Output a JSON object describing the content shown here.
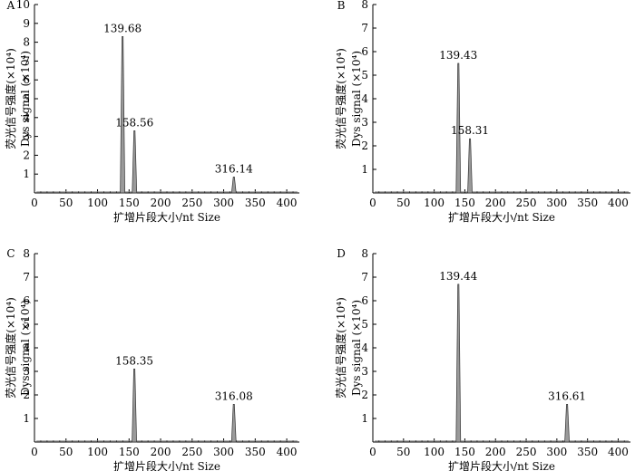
{
  "chart_data": [
    {
      "type": "line",
      "panel": "A",
      "xlabel": "扩增片段大小/nt  Size",
      "ylabel_cn": "荧光信号强度(×10⁴)",
      "ylabel_en": "Dys signal (×10⁴)",
      "xlim": [
        0,
        420
      ],
      "ylim": [
        0,
        10
      ],
      "xticks": [
        0,
        50,
        100,
        150,
        200,
        250,
        300,
        350,
        400
      ],
      "yticks": [
        1,
        2,
        3,
        4,
        5,
        6,
        7,
        8,
        9,
        10
      ],
      "grid": false,
      "peaks": [
        {
          "x": 139.68,
          "y": 8.3,
          "label": "139.68"
        },
        {
          "x": 158.56,
          "y": 3.3,
          "label": "158.56"
        },
        {
          "x": 316.14,
          "y": 0.85,
          "label": "316.14"
        }
      ]
    },
    {
      "type": "line",
      "panel": "B",
      "xlabel": "扩增片段大小/nt  Size",
      "ylabel_cn": "荧光信号强度(×10⁴)",
      "ylabel_en": "Dys signal (×10⁴)",
      "xlim": [
        0,
        420
      ],
      "ylim": [
        0,
        8
      ],
      "xticks": [
        0,
        50,
        100,
        150,
        200,
        250,
        300,
        350,
        400
      ],
      "yticks": [
        1,
        2,
        3,
        4,
        5,
        6,
        7,
        8
      ],
      "grid": false,
      "peaks": [
        {
          "x": 139.43,
          "y": 5.5,
          "label": "139.43"
        },
        {
          "x": 158.31,
          "y": 2.3,
          "label": "158.31"
        }
      ]
    },
    {
      "type": "line",
      "panel": "C",
      "xlabel": "扩增片段大小/nt  Size",
      "ylabel_cn": "荧光信号强度(×10⁴)",
      "ylabel_en": "Dys signal (×10⁴)",
      "xlim": [
        0,
        420
      ],
      "ylim": [
        0,
        8
      ],
      "xticks": [
        0,
        50,
        100,
        150,
        200,
        250,
        300,
        350,
        400
      ],
      "yticks": [
        1,
        2,
        3,
        4,
        5,
        6,
        7,
        8
      ],
      "grid": false,
      "peaks": [
        {
          "x": 158.35,
          "y": 3.1,
          "label": "158.35"
        },
        {
          "x": 316.08,
          "y": 1.6,
          "label": "316.08"
        }
      ]
    },
    {
      "type": "line",
      "panel": "D",
      "xlabel": "扩增片段大小/nt  Size",
      "ylabel_cn": "荧光信号强度(×10⁴)",
      "ylabel_en": "Dys signal (×10⁴)",
      "xlim": [
        0,
        420
      ],
      "ylim": [
        0,
        8
      ],
      "xticks": [
        0,
        50,
        100,
        150,
        200,
        250,
        300,
        350,
        400
      ],
      "yticks": [
        1,
        2,
        3,
        4,
        5,
        6,
        7,
        8
      ],
      "grid": false,
      "peaks": [
        {
          "x": 139.44,
          "y": 6.7,
          "label": "139.44"
        },
        {
          "x": 316.61,
          "y": 1.6,
          "label": "316.61"
        }
      ]
    }
  ]
}
